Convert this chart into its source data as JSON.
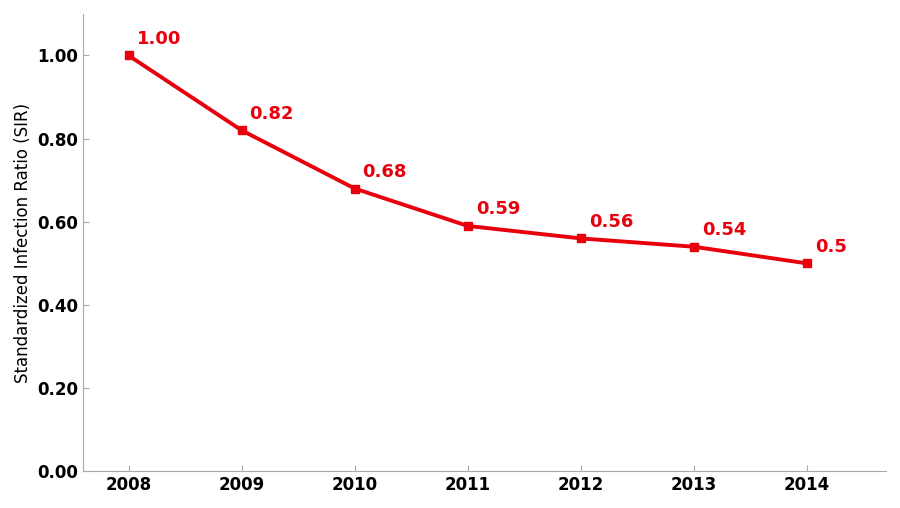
{
  "years": [
    2008,
    2009,
    2010,
    2011,
    2012,
    2013,
    2014
  ],
  "values": [
    1.0,
    0.82,
    0.68,
    0.59,
    0.56,
    0.54,
    0.5
  ],
  "labels": [
    "1.00",
    "0.82",
    "0.68",
    "0.59",
    "0.56",
    "0.54",
    "0.5"
  ],
  "line_color": "#E8000D",
  "marker_style": "s",
  "marker_size": 6,
  "line_width": 2.8,
  "ylabel": "Standardized Infection Ratio (SIR)",
  "ylim": [
    0.0,
    1.1
  ],
  "yticks": [
    0.0,
    0.2,
    0.4,
    0.6,
    0.8,
    1.0
  ],
  "xlim": [
    2007.6,
    2014.7
  ],
  "label_fontsize": 13,
  "tick_fontsize": 12,
  "ylabel_fontsize": 12,
  "background_color": "#ffffff",
  "label_color": "#E8000D",
  "spine_color": "#aaaaaa",
  "label_offsets_x": [
    0.07,
    0.07,
    0.07,
    0.07,
    0.07,
    0.07,
    0.07
  ],
  "label_offsets_y": [
    0.018,
    0.018,
    0.018,
    0.018,
    0.018,
    0.018,
    0.018
  ]
}
